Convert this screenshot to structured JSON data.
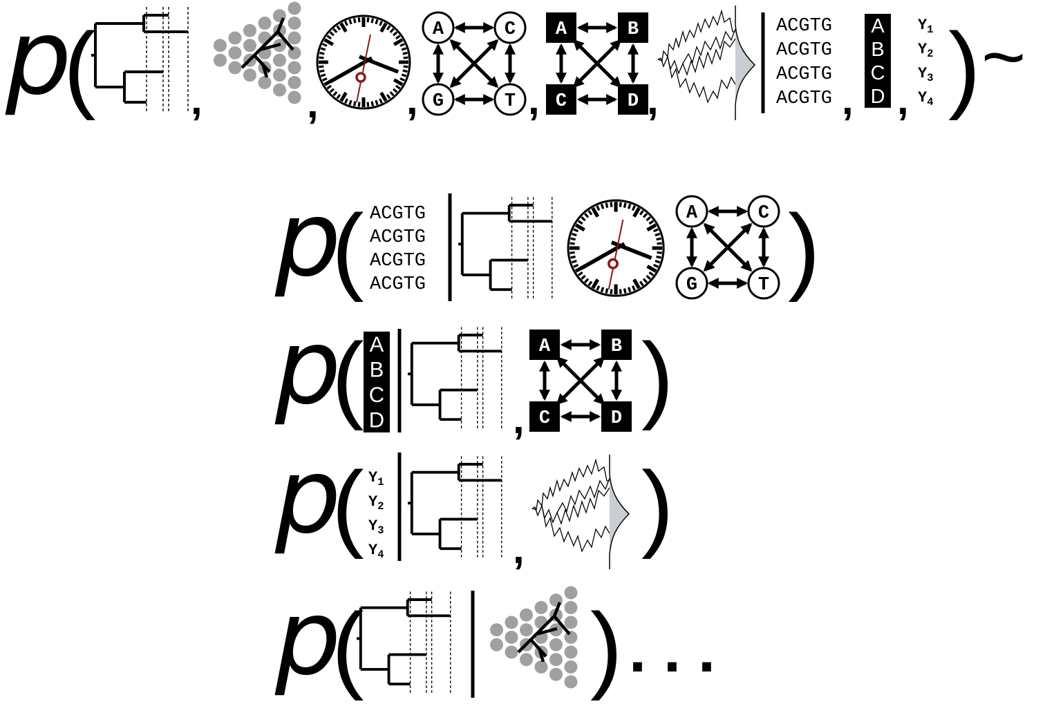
{
  "symbols": {
    "p": "p",
    "open_paren": "(",
    "close_paren": ")",
    "comma": ",",
    "tilde": "~",
    "ellipsis": ". . ."
  },
  "sequences": [
    "ACGTG",
    "ACGTG",
    "ACGTG",
    "ACGTG"
  ],
  "discrete_traits": [
    "A",
    "B",
    "C",
    "D"
  ],
  "continuous_traits": [
    {
      "base": "Y",
      "sub": "1"
    },
    {
      "base": "Y",
      "sub": "2"
    },
    {
      "base": "Y",
      "sub": "3"
    },
    {
      "base": "Y",
      "sub": "4"
    }
  ],
  "nucleotide_model_states": [
    "A",
    "C",
    "G",
    "T"
  ],
  "discrete_model_states": [
    "A",
    "B",
    "C",
    "D"
  ],
  "colors": {
    "ink": "#000000",
    "paper": "#ffffff",
    "node_gray": "#a0a0a0",
    "density_fill": "#c8ced3",
    "clock_second_hand": "#8b1a1a"
  },
  "icons": [
    "phylogeny-tree-icon",
    "diversification-tree-icon",
    "molecular-clock-icon",
    "substitution-model-icon",
    "discrete-trait-model-icon",
    "continuous-trait-process-icon"
  ]
}
